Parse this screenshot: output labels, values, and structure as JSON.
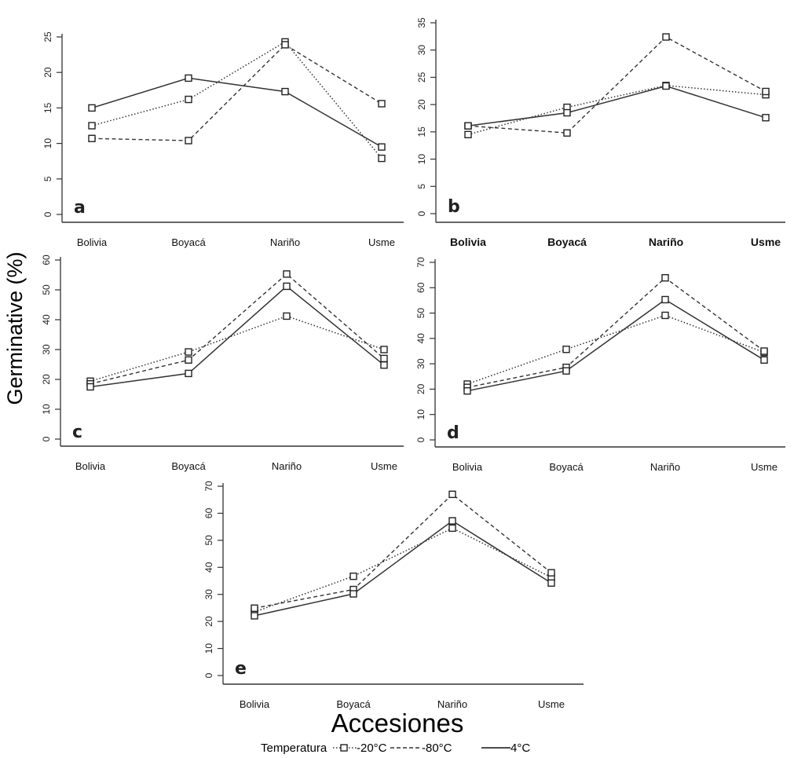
{
  "chart_data": {
    "type": "line",
    "xlabel": "Accesiones",
    "ylabel": "Germinative (%)",
    "categories": [
      "Bolivia",
      "Boyacá",
      "Nariño",
      "Usme"
    ],
    "legend": {
      "title": "Temperatura",
      "placement": "bottom-center",
      "entries": [
        {
          "name": "-20°C",
          "style": "dotted",
          "marker": "square"
        },
        {
          "name": "-80°C",
          "style": "dashed",
          "marker": "square"
        },
        {
          "name": "4°C",
          "style": "solid",
          "marker": "square"
        }
      ]
    },
    "panels": [
      {
        "letter": "a",
        "ylim": [
          0,
          25
        ],
        "yticks": [
          0,
          5,
          10,
          15,
          20,
          25
        ],
        "grid": false,
        "series": [
          {
            "name": "-20°C",
            "values": [
              12.5,
              16.2,
              24.3,
              7.9
            ]
          },
          {
            "name": "-80°C",
            "values": [
              10.7,
              10.4,
              23.9,
              15.6
            ]
          },
          {
            "name": "4°C",
            "values": [
              15.0,
              19.2,
              17.3,
              9.5
            ]
          }
        ]
      },
      {
        "letter": "b",
        "ylim": [
          0,
          35
        ],
        "yticks": [
          0,
          5,
          10,
          15,
          20,
          25,
          30,
          35
        ],
        "grid": false,
        "series": [
          {
            "name": "-20°C",
            "values": [
              14.5,
              19.5,
              23.5,
              21.8
            ]
          },
          {
            "name": "-80°C",
            "values": [
              16.1,
              14.8,
              32.4,
              22.4
            ]
          },
          {
            "name": "4°C",
            "values": [
              16.1,
              18.5,
              23.4,
              17.6
            ]
          }
        ]
      },
      {
        "letter": "c",
        "ylim": [
          0,
          60
        ],
        "yticks": [
          0,
          10,
          20,
          30,
          40,
          50,
          60
        ],
        "grid": false,
        "series": [
          {
            "name": "-20°C",
            "values": [
              19.4,
              29.2,
              41.2,
              30.0
            ]
          },
          {
            "name": "-80°C",
            "values": [
              18.5,
              26.5,
              55.3,
              27.0
            ]
          },
          {
            "name": "4°C",
            "values": [
              17.5,
              22.0,
              51.2,
              24.8
            ]
          }
        ]
      },
      {
        "letter": "d",
        "ylim": [
          0,
          70
        ],
        "yticks": [
          0,
          10,
          20,
          30,
          40,
          50,
          60,
          70
        ],
        "grid": false,
        "series": [
          {
            "name": "-20°C",
            "values": [
              22.0,
              35.7,
              49.1,
              34.5
            ]
          },
          {
            "name": "-80°C",
            "values": [
              20.7,
              28.6,
              63.9,
              35.0
            ]
          },
          {
            "name": "4°C",
            "values": [
              19.3,
              27.2,
              55.3,
              31.5
            ]
          }
        ]
      },
      {
        "letter": "e",
        "ylim": [
          0,
          70
        ],
        "yticks": [
          0,
          10,
          20,
          30,
          40,
          50,
          60,
          70
        ],
        "grid": false,
        "series": [
          {
            "name": "-20°C",
            "values": [
              23.5,
              36.7,
              54.5,
              36.3
            ]
          },
          {
            "name": "-80°C",
            "values": [
              24.9,
              31.8,
              67.0,
              38.0
            ]
          },
          {
            "name": "4°C",
            "values": [
              22.1,
              30.2,
              57.2,
              34.2
            ]
          }
        ]
      }
    ]
  }
}
